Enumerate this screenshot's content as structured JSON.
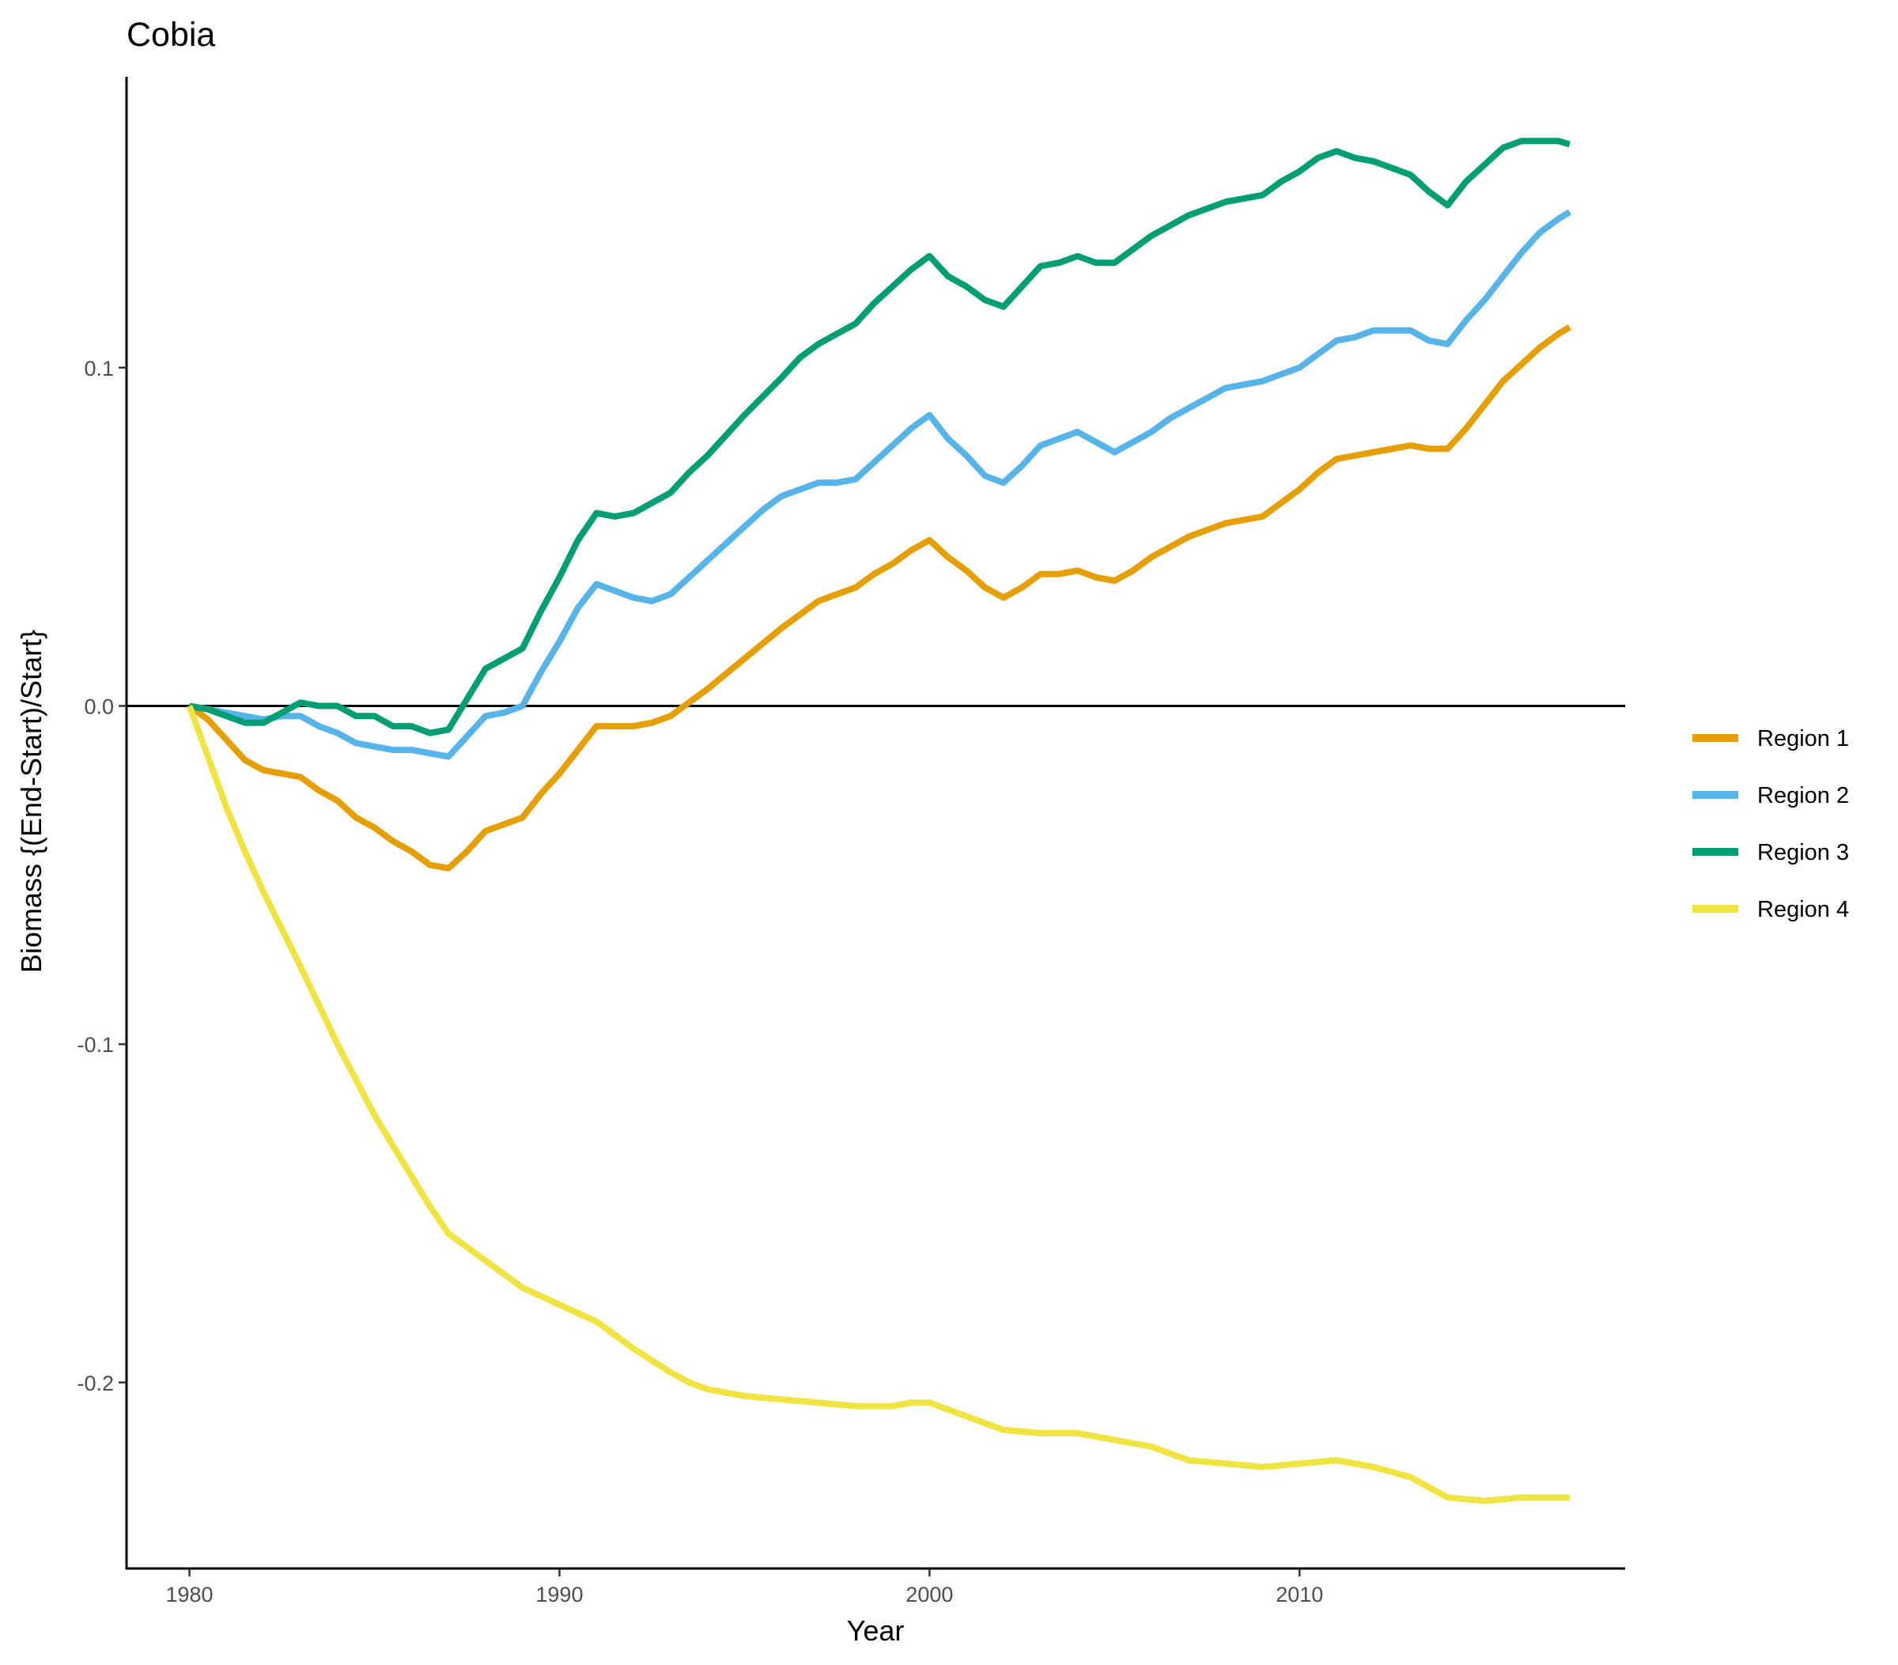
{
  "chart_data": {
    "type": "line",
    "title": "Cobia",
    "xlabel": "Year",
    "ylabel": "Biomass {(End-Start)/Start}",
    "xlim": [
      1978.3,
      2018.8
    ],
    "ylim": [
      -0.255,
      0.186
    ],
    "x_ticks": [
      1980,
      1990,
      2000,
      2010
    ],
    "x_tick_labels": [
      "1980",
      "1990",
      "2000",
      "2010"
    ],
    "y_ticks": [
      -0.2,
      -0.1,
      0.0,
      0.1
    ],
    "y_tick_labels": [
      "-0.2",
      "-0.1",
      "0.0",
      "0.1"
    ],
    "reference_line_y": 0,
    "grid": false,
    "legend_position": "right",
    "series": [
      {
        "name": "Region 1",
        "color": "#E69F00",
        "points": [
          [
            1980,
            0
          ],
          [
            1980.5,
            -0.004
          ],
          [
            1981,
            -0.01
          ],
          [
            1981.5,
            -0.016
          ],
          [
            1982,
            -0.019
          ],
          [
            1983,
            -0.021
          ],
          [
            1983.5,
            -0.025
          ],
          [
            1984,
            -0.028
          ],
          [
            1984.5,
            -0.033
          ],
          [
            1985,
            -0.036
          ],
          [
            1985.5,
            -0.04
          ],
          [
            1986,
            -0.043
          ],
          [
            1986.5,
            -0.047
          ],
          [
            1987,
            -0.048
          ],
          [
            1987.5,
            -0.043
          ],
          [
            1988,
            -0.037
          ],
          [
            1988.5,
            -0.035
          ],
          [
            1989,
            -0.033
          ],
          [
            1989.5,
            -0.026
          ],
          [
            1990,
            -0.02
          ],
          [
            1990.5,
            -0.013
          ],
          [
            1991,
            -0.006
          ],
          [
            1991.5,
            -0.006
          ],
          [
            1992,
            -0.006
          ],
          [
            1992.5,
            -0.005
          ],
          [
            1993,
            -0.003
          ],
          [
            1993.5,
            0.001
          ],
          [
            1994,
            0.005
          ],
          [
            1995,
            0.014
          ],
          [
            1996,
            0.023
          ],
          [
            1997,
            0.031
          ],
          [
            1997.5,
            0.033
          ],
          [
            1998,
            0.035
          ],
          [
            1998.5,
            0.039
          ],
          [
            1999,
            0.042
          ],
          [
            1999.5,
            0.046
          ],
          [
            2000,
            0.049
          ],
          [
            2000.5,
            0.044
          ],
          [
            2001,
            0.04
          ],
          [
            2001.5,
            0.035
          ],
          [
            2002,
            0.032
          ],
          [
            2002.5,
            0.035
          ],
          [
            2003,
            0.039
          ],
          [
            2003.5,
            0.039
          ],
          [
            2004,
            0.04
          ],
          [
            2004.5,
            0.038
          ],
          [
            2005,
            0.037
          ],
          [
            2005.5,
            0.04
          ],
          [
            2006,
            0.044
          ],
          [
            2006.5,
            0.047
          ],
          [
            2007,
            0.05
          ],
          [
            2008,
            0.054
          ],
          [
            2009,
            0.056
          ],
          [
            2009.5,
            0.06
          ],
          [
            2010,
            0.064
          ],
          [
            2010.5,
            0.069
          ],
          [
            2011,
            0.073
          ],
          [
            2011.5,
            0.074
          ],
          [
            2012,
            0.075
          ],
          [
            2012.5,
            0.076
          ],
          [
            2013,
            0.077
          ],
          [
            2013.5,
            0.076
          ],
          [
            2014,
            0.076
          ],
          [
            2014.5,
            0.082
          ],
          [
            2015,
            0.089
          ],
          [
            2015.5,
            0.096
          ],
          [
            2016,
            0.101
          ],
          [
            2016.5,
            0.106
          ],
          [
            2017,
            0.11
          ],
          [
            2017.3,
            0.112
          ]
        ]
      },
      {
        "name": "Region 2",
        "color": "#56B4E9",
        "points": [
          [
            1980,
            0
          ],
          [
            1980.5,
            -0.001
          ],
          [
            1981,
            -0.002
          ],
          [
            1981.5,
            -0.003
          ],
          [
            1982,
            -0.004
          ],
          [
            1982.5,
            -0.003
          ],
          [
            1983,
            -0.003
          ],
          [
            1983.5,
            -0.006
          ],
          [
            1984,
            -0.008
          ],
          [
            1984.5,
            -0.011
          ],
          [
            1985,
            -0.012
          ],
          [
            1985.5,
            -0.013
          ],
          [
            1986,
            -0.013
          ],
          [
            1986.5,
            -0.014
          ],
          [
            1987,
            -0.015
          ],
          [
            1987.5,
            -0.009
          ],
          [
            1988,
            -0.003
          ],
          [
            1988.5,
            -0.002
          ],
          [
            1989,
            0
          ],
          [
            1989.5,
            0.01
          ],
          [
            1990,
            0.019
          ],
          [
            1990.5,
            0.029
          ],
          [
            1991,
            0.036
          ],
          [
            1991.5,
            0.034
          ],
          [
            1992,
            0.032
          ],
          [
            1992.5,
            0.031
          ],
          [
            1993,
            0.033
          ],
          [
            1993.5,
            0.038
          ],
          [
            1994,
            0.043
          ],
          [
            1995,
            0.053
          ],
          [
            1995.5,
            0.058
          ],
          [
            1996,
            0.062
          ],
          [
            1996.5,
            0.064
          ],
          [
            1997,
            0.066
          ],
          [
            1997.5,
            0.066
          ],
          [
            1998,
            0.067
          ],
          [
            1998.5,
            0.072
          ],
          [
            1999,
            0.077
          ],
          [
            1999.5,
            0.082
          ],
          [
            2000,
            0.086
          ],
          [
            2000.5,
            0.079
          ],
          [
            2001,
            0.074
          ],
          [
            2001.5,
            0.068
          ],
          [
            2002,
            0.066
          ],
          [
            2002.5,
            0.071
          ],
          [
            2003,
            0.077
          ],
          [
            2003.5,
            0.079
          ],
          [
            2004,
            0.081
          ],
          [
            2004.5,
            0.078
          ],
          [
            2005,
            0.075
          ],
          [
            2005.5,
            0.078
          ],
          [
            2006,
            0.081
          ],
          [
            2006.5,
            0.085
          ],
          [
            2007,
            0.088
          ],
          [
            2008,
            0.094
          ],
          [
            2008.5,
            0.095
          ],
          [
            2009,
            0.096
          ],
          [
            2009.5,
            0.098
          ],
          [
            2010,
            0.1
          ],
          [
            2010.5,
            0.104
          ],
          [
            2011,
            0.108
          ],
          [
            2011.5,
            0.109
          ],
          [
            2012,
            0.111
          ],
          [
            2012.5,
            0.111
          ],
          [
            2013,
            0.111
          ],
          [
            2013.5,
            0.108
          ],
          [
            2014,
            0.107
          ],
          [
            2014.5,
            0.114
          ],
          [
            2015,
            0.12
          ],
          [
            2015.5,
            0.127
          ],
          [
            2016,
            0.134
          ],
          [
            2016.5,
            0.14
          ],
          [
            2017,
            0.144
          ],
          [
            2017.3,
            0.146
          ]
        ]
      },
      {
        "name": "Region 3",
        "color": "#009E73",
        "points": [
          [
            1980,
            0
          ],
          [
            1980.5,
            -0.001
          ],
          [
            1981,
            -0.003
          ],
          [
            1981.5,
            -0.005
          ],
          [
            1982,
            -0.005
          ],
          [
            1982.5,
            -0.002
          ],
          [
            1983,
            0.001
          ],
          [
            1983.5,
            0
          ],
          [
            1984,
            0
          ],
          [
            1984.5,
            -0.003
          ],
          [
            1985,
            -0.003
          ],
          [
            1985.5,
            -0.006
          ],
          [
            1986,
            -0.006
          ],
          [
            1986.5,
            -0.008
          ],
          [
            1987,
            -0.007
          ],
          [
            1987.5,
            0.002
          ],
          [
            1988,
            0.011
          ],
          [
            1988.5,
            0.014
          ],
          [
            1989,
            0.017
          ],
          [
            1989.5,
            0.028
          ],
          [
            1990,
            0.038
          ],
          [
            1990.5,
            0.049
          ],
          [
            1991,
            0.057
          ],
          [
            1991.5,
            0.056
          ],
          [
            1992,
            0.057
          ],
          [
            1992.5,
            0.06
          ],
          [
            1993,
            0.063
          ],
          [
            1993.5,
            0.069
          ],
          [
            1994,
            0.074
          ],
          [
            1995,
            0.086
          ],
          [
            1996,
            0.097
          ],
          [
            1996.5,
            0.103
          ],
          [
            1997,
            0.107
          ],
          [
            1997.5,
            0.11
          ],
          [
            1998,
            0.113
          ],
          [
            1998.5,
            0.119
          ],
          [
            1999,
            0.124
          ],
          [
            1999.5,
            0.129
          ],
          [
            2000,
            0.133
          ],
          [
            2000.5,
            0.127
          ],
          [
            2001,
            0.124
          ],
          [
            2001.5,
            0.12
          ],
          [
            2002,
            0.118
          ],
          [
            2002.5,
            0.124
          ],
          [
            2003,
            0.13
          ],
          [
            2003.5,
            0.131
          ],
          [
            2004,
            0.133
          ],
          [
            2004.5,
            0.131
          ],
          [
            2005,
            0.131
          ],
          [
            2005.5,
            0.135
          ],
          [
            2006,
            0.139
          ],
          [
            2006.5,
            0.142
          ],
          [
            2007,
            0.145
          ],
          [
            2008,
            0.149
          ],
          [
            2009,
            0.151
          ],
          [
            2009.5,
            0.155
          ],
          [
            2010,
            0.158
          ],
          [
            2010.5,
            0.162
          ],
          [
            2011,
            0.164
          ],
          [
            2011.5,
            0.162
          ],
          [
            2012,
            0.161
          ],
          [
            2012.5,
            0.159
          ],
          [
            2013,
            0.157
          ],
          [
            2013.5,
            0.152
          ],
          [
            2014,
            0.148
          ],
          [
            2014.5,
            0.155
          ],
          [
            2015,
            0.16
          ],
          [
            2015.5,
            0.165
          ],
          [
            2016,
            0.167
          ],
          [
            2016.5,
            0.167
          ],
          [
            2017,
            0.167
          ],
          [
            2017.3,
            0.166
          ]
        ]
      },
      {
        "name": "Region 4",
        "color": "#F0E442",
        "points": [
          [
            1980,
            0
          ],
          [
            1980.5,
            -0.015
          ],
          [
            1981,
            -0.03
          ],
          [
            1981.5,
            -0.043
          ],
          [
            1982,
            -0.055
          ],
          [
            1983,
            -0.077
          ],
          [
            1984,
            -0.1
          ],
          [
            1985,
            -0.121
          ],
          [
            1986,
            -0.139
          ],
          [
            1986.5,
            -0.148
          ],
          [
            1987,
            -0.156
          ],
          [
            1987.5,
            -0.16
          ],
          [
            1988,
            -0.164
          ],
          [
            1988.5,
            -0.168
          ],
          [
            1989,
            -0.172
          ],
          [
            1990,
            -0.177
          ],
          [
            1991,
            -0.182
          ],
          [
            1992,
            -0.19
          ],
          [
            1993,
            -0.197
          ],
          [
            1993.5,
            -0.2
          ],
          [
            1994,
            -0.202
          ],
          [
            1995,
            -0.204
          ],
          [
            1996,
            -0.205
          ],
          [
            1997,
            -0.206
          ],
          [
            1998,
            -0.207
          ],
          [
            1999,
            -0.207
          ],
          [
            1999.5,
            -0.206
          ],
          [
            2000,
            -0.206
          ],
          [
            2000.5,
            -0.208
          ],
          [
            2001,
            -0.21
          ],
          [
            2002,
            -0.214
          ],
          [
            2003,
            -0.215
          ],
          [
            2004,
            -0.215
          ],
          [
            2005,
            -0.217
          ],
          [
            2006,
            -0.219
          ],
          [
            2007,
            -0.223
          ],
          [
            2008,
            -0.224
          ],
          [
            2009,
            -0.225
          ],
          [
            2010,
            -0.224
          ],
          [
            2011,
            -0.223
          ],
          [
            2012,
            -0.225
          ],
          [
            2013,
            -0.228
          ],
          [
            2013.5,
            -0.231
          ],
          [
            2014,
            -0.234
          ],
          [
            2015,
            -0.235
          ],
          [
            2016,
            -0.234
          ],
          [
            2017,
            -0.234
          ],
          [
            2017.3,
            -0.234
          ]
        ]
      }
    ]
  }
}
